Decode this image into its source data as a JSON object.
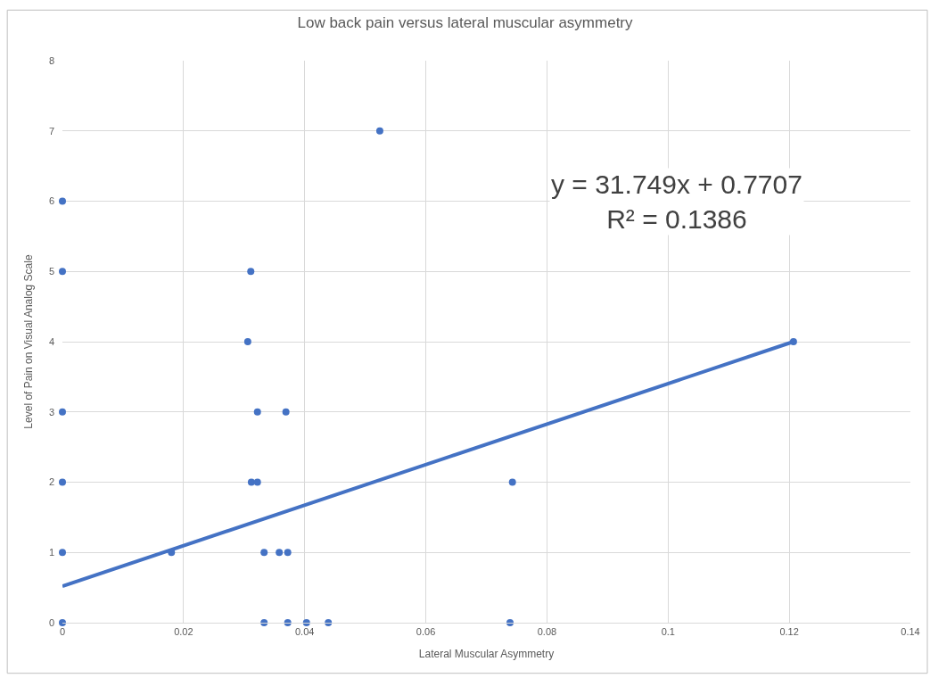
{
  "chart_data": {
    "type": "scatter",
    "title": "Low back pain versus lateral muscular asymmetry",
    "xlabel": "Lateral Muscular Asymmetry",
    "ylabel": "Level of Pain on Visual Analog Scale",
    "xlim": [
      0,
      0.14
    ],
    "xticks": [
      0,
      0.02,
      0.04,
      0.06,
      0.08,
      0.1,
      0.12,
      0.14
    ],
    "ylim": [
      0,
      8
    ],
    "yticks": [
      0,
      1,
      2,
      3,
      4,
      5,
      6,
      7,
      8
    ],
    "grid": true,
    "series": [
      {
        "marker": "circle",
        "color": "#4472c4",
        "x": [
          0,
          0,
          0,
          0,
          0,
          0,
          0.018,
          0.0306,
          0.0311,
          0.0312,
          0.0322,
          0.0322,
          0.0333,
          0.0333,
          0.0358,
          0.0369,
          0.0372,
          0.0372,
          0.0403,
          0.0439,
          0.0524,
          0.0739,
          0.0743,
          0.1207
        ],
        "values": [
          0,
          1,
          2,
          3,
          5,
          6,
          1,
          4,
          5,
          2,
          2,
          3,
          1,
          0,
          1,
          3,
          1,
          0,
          0,
          0,
          7,
          0,
          2,
          4
        ]
      },
      {
        "type": "line",
        "color": "#4472c4",
        "line_style": "solid",
        "x": [
          0,
          0.1207
        ],
        "values": [
          0.52,
          4.0
        ]
      }
    ],
    "annotations": [
      "y = 31.749x + 0.7707\nR² = 0.1386"
    ]
  }
}
